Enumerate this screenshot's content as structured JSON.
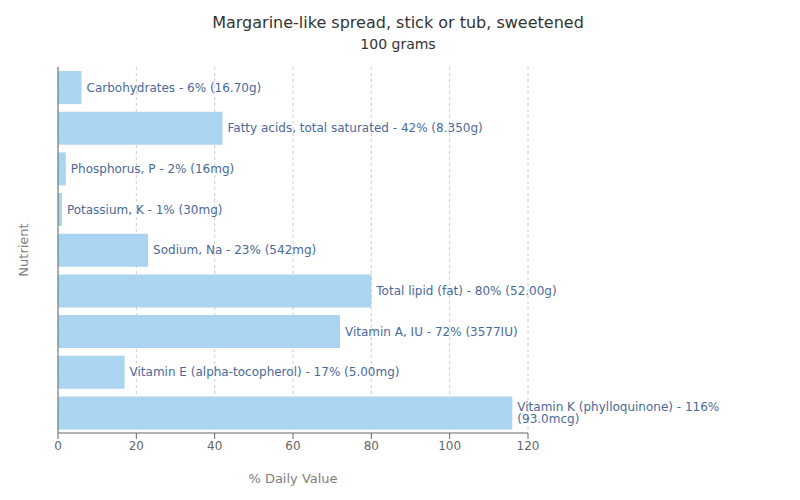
{
  "chart_data": {
    "type": "bar",
    "orientation": "horizontal",
    "title": "Margarine-like spread, stick or tub, sweetened",
    "subtitle": "100 grams",
    "x_label": "% Daily Value",
    "y_label": "Nutrient",
    "categories": [
      "Carbohydrates - 6% (16.70g)",
      "Fatty acids, total saturated - 42% (8.350g)",
      "Phosphorus, P - 2% (16mg)",
      "Potassium, K - 1% (30mg)",
      "Sodium, Na - 23% (542mg)",
      "Total lipid (fat) - 80% (52.00g)",
      "Vitamin A, IU - 72% (3577IU)",
      "Vitamin E (alpha-tocopherol) - 17% (5.00mg)",
      "Vitamin K (phylloquinone) - 116% (93.0mcg)"
    ],
    "values": [
      6,
      42,
      2,
      1,
      23,
      80,
      72,
      17,
      116
    ],
    "color": "#aad4f0",
    "xlim": [
      0,
      120
    ],
    "xticks": [
      0,
      20,
      40,
      60,
      80,
      100,
      120
    ],
    "grid": true,
    "tick_labels": "x"
  }
}
